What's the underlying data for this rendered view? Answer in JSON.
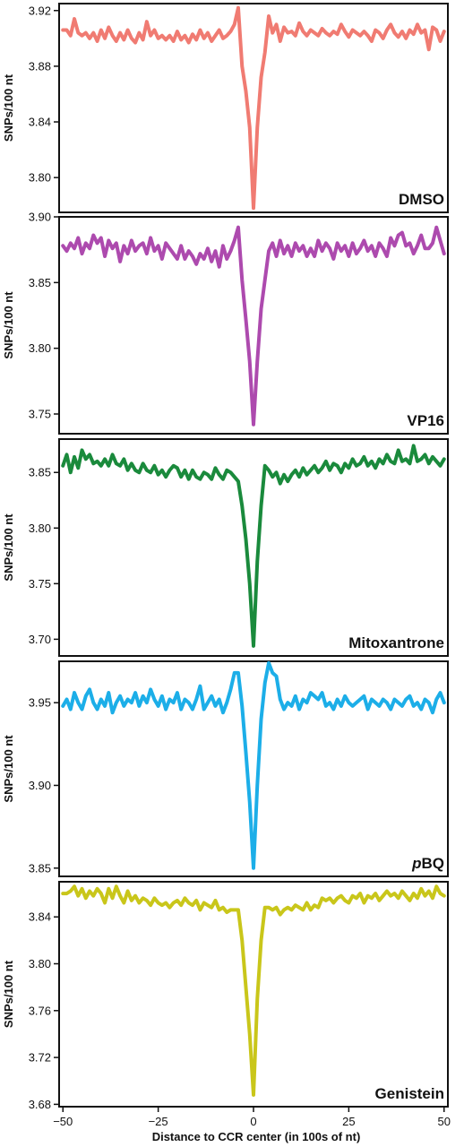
{
  "figure": {
    "ylabel": "SNPs/100 nt",
    "xlabel": "Distance to CCR center (in 100s of nt)"
  },
  "chart_data": [
    {
      "type": "line",
      "title": "DMSO",
      "color": "#F07B72",
      "ylim": [
        3.775,
        3.925
      ],
      "yticks": [
        3.8,
        3.84,
        3.88,
        3.92
      ],
      "xlim": [
        -51,
        51
      ],
      "x": [
        -50,
        -49,
        -48,
        -47,
        -46,
        -45,
        -44,
        -43,
        -42,
        -41,
        -40,
        -39,
        -38,
        -37,
        -36,
        -35,
        -34,
        -33,
        -32,
        -31,
        -30,
        -29,
        -28,
        -27,
        -26,
        -25,
        -24,
        -23,
        -22,
        -21,
        -20,
        -19,
        -18,
        -17,
        -16,
        -15,
        -14,
        -13,
        -12,
        -11,
        -10,
        -9,
        -8,
        -7,
        -6,
        -5,
        -4,
        -3,
        -2,
        -1,
        0,
        1,
        2,
        3,
        4,
        5,
        6,
        7,
        8,
        9,
        10,
        11,
        12,
        13,
        14,
        15,
        16,
        17,
        18,
        19,
        20,
        21,
        22,
        23,
        24,
        25,
        26,
        27,
        28,
        29,
        30,
        31,
        32,
        33,
        34,
        35,
        36,
        37,
        38,
        39,
        40,
        41,
        42,
        43,
        44,
        45,
        46,
        47,
        48,
        49,
        50
      ],
      "values": [
        3.906,
        3.906,
        3.902,
        3.914,
        3.904,
        3.902,
        3.904,
        3.9,
        3.904,
        3.898,
        3.906,
        3.9,
        3.908,
        3.902,
        3.898,
        3.904,
        3.899,
        3.906,
        3.9,
        3.897,
        3.904,
        3.899,
        3.912,
        3.902,
        3.906,
        3.9,
        3.902,
        3.899,
        3.902,
        3.898,
        3.905,
        3.899,
        3.902,
        3.897,
        3.903,
        3.899,
        3.906,
        3.9,
        3.904,
        3.898,
        3.902,
        3.906,
        3.9,
        3.902,
        3.905,
        3.91,
        3.922,
        3.88,
        3.862,
        3.836,
        3.778,
        3.836,
        3.872,
        3.89,
        3.916,
        3.904,
        3.91,
        3.898,
        3.908,
        3.904,
        3.905,
        3.902,
        3.911,
        3.905,
        3.902,
        3.906,
        3.904,
        3.902,
        3.907,
        3.904,
        3.902,
        3.905,
        3.903,
        3.91,
        3.905,
        3.901,
        3.906,
        3.904,
        3.902,
        3.905,
        3.902,
        3.898,
        3.906,
        3.904,
        3.9,
        3.906,
        3.91,
        3.904,
        3.901,
        3.905,
        3.9,
        3.906,
        3.903,
        3.91,
        3.904,
        3.906,
        3.892,
        3.908,
        3.906,
        3.898,
        3.905
      ]
    },
    {
      "type": "line",
      "title": "VP16",
      "color": "#AD4AAE",
      "ylim": [
        3.735,
        3.9
      ],
      "yticks": [
        3.75,
        3.8,
        3.85,
        3.9
      ],
      "xlim": [
        -51,
        51
      ],
      "x": [
        -50,
        -49,
        -48,
        -47,
        -46,
        -45,
        -44,
        -43,
        -42,
        -41,
        -40,
        -39,
        -38,
        -37,
        -36,
        -35,
        -34,
        -33,
        -32,
        -31,
        -30,
        -29,
        -28,
        -27,
        -26,
        -25,
        -24,
        -23,
        -22,
        -21,
        -20,
        -19,
        -18,
        -17,
        -16,
        -15,
        -14,
        -13,
        -12,
        -11,
        -10,
        -9,
        -8,
        -7,
        -6,
        -5,
        -4,
        -3,
        -2,
        -1,
        0,
        1,
        2,
        3,
        4,
        5,
        6,
        7,
        8,
        9,
        10,
        11,
        12,
        13,
        14,
        15,
        16,
        17,
        18,
        19,
        20,
        21,
        22,
        23,
        24,
        25,
        26,
        27,
        28,
        29,
        30,
        31,
        32,
        33,
        34,
        35,
        36,
        37,
        38,
        39,
        40,
        41,
        42,
        43,
        44,
        45,
        46,
        47,
        48,
        49,
        50
      ],
      "values": [
        3.878,
        3.874,
        3.88,
        3.876,
        3.884,
        3.872,
        3.88,
        3.876,
        3.886,
        3.88,
        3.884,
        3.87,
        3.882,
        3.876,
        3.88,
        3.866,
        3.878,
        3.872,
        3.882,
        3.874,
        3.878,
        3.88,
        3.872,
        3.884,
        3.874,
        3.878,
        3.868,
        3.88,
        3.876,
        3.872,
        3.868,
        3.878,
        3.868,
        3.874,
        3.87,
        3.864,
        3.872,
        3.868,
        3.876,
        3.866,
        3.874,
        3.862,
        3.878,
        3.868,
        3.874,
        3.882,
        3.892,
        3.852,
        3.822,
        3.79,
        3.742,
        3.79,
        3.83,
        3.852,
        3.874,
        3.88,
        3.87,
        3.882,
        3.872,
        3.878,
        3.87,
        3.88,
        3.874,
        3.878,
        3.87,
        3.876,
        3.87,
        3.882,
        3.874,
        3.88,
        3.876,
        3.868,
        3.88,
        3.874,
        3.878,
        3.87,
        3.88,
        3.872,
        3.876,
        3.882,
        3.874,
        3.878,
        3.87,
        3.88,
        3.876,
        3.87,
        3.884,
        3.878,
        3.886,
        3.888,
        3.878,
        3.88,
        3.872,
        3.878,
        3.886,
        3.876,
        3.876,
        3.88,
        3.892,
        3.882,
        3.872
      ]
    },
    {
      "type": "line",
      "title": "Mitoxantrone",
      "color": "#1A8A3C",
      "ylim": [
        3.685,
        3.88
      ],
      "yticks": [
        3.7,
        3.75,
        3.8,
        3.85
      ],
      "xlim": [
        -51,
        51
      ],
      "x": [
        -50,
        -49,
        -48,
        -47,
        -46,
        -45,
        -44,
        -43,
        -42,
        -41,
        -40,
        -39,
        -38,
        -37,
        -36,
        -35,
        -34,
        -33,
        -32,
        -31,
        -30,
        -29,
        -28,
        -27,
        -26,
        -25,
        -24,
        -23,
        -22,
        -21,
        -20,
        -19,
        -18,
        -17,
        -16,
        -15,
        -14,
        -13,
        -12,
        -11,
        -10,
        -9,
        -8,
        -7,
        -6,
        -5,
        -4,
        -3,
        -2,
        -1,
        0,
        1,
        2,
        3,
        4,
        5,
        6,
        7,
        8,
        9,
        10,
        11,
        12,
        13,
        14,
        15,
        16,
        17,
        18,
        19,
        20,
        21,
        22,
        23,
        24,
        25,
        26,
        27,
        28,
        29,
        30,
        31,
        32,
        33,
        34,
        35,
        36,
        37,
        38,
        39,
        40,
        41,
        42,
        43,
        44,
        45,
        46,
        47,
        48,
        49,
        50
      ],
      "values": [
        3.856,
        3.866,
        3.85,
        3.864,
        3.854,
        3.87,
        3.862,
        3.866,
        3.858,
        3.86,
        3.856,
        3.862,
        3.856,
        3.866,
        3.858,
        3.856,
        3.862,
        3.852,
        3.858,
        3.852,
        3.85,
        3.858,
        3.852,
        3.85,
        3.856,
        3.848,
        3.852,
        3.846,
        3.852,
        3.856,
        3.854,
        3.846,
        3.852,
        3.844,
        3.852,
        3.846,
        3.844,
        3.85,
        3.848,
        3.844,
        3.854,
        3.848,
        3.844,
        3.852,
        3.85,
        3.846,
        3.842,
        3.82,
        3.79,
        3.75,
        3.694,
        3.77,
        3.82,
        3.856,
        3.852,
        3.846,
        3.85,
        3.84,
        3.848,
        3.842,
        3.848,
        3.852,
        3.846,
        3.854,
        3.848,
        3.852,
        3.856,
        3.85,
        3.854,
        3.86,
        3.852,
        3.858,
        3.856,
        3.85,
        3.858,
        3.854,
        3.862,
        3.856,
        3.858,
        3.864,
        3.856,
        3.86,
        3.854,
        3.862,
        3.858,
        3.866,
        3.86,
        3.858,
        3.87,
        3.86,
        3.862,
        3.858,
        3.874,
        3.86,
        3.862,
        3.866,
        3.858,
        3.864,
        3.86,
        3.856,
        3.862
      ]
    },
    {
      "type": "line",
      "title": "pBQ",
      "color": "#1CAEE8",
      "ylim": [
        3.845,
        3.975
      ],
      "yticks": [
        3.85,
        3.9,
        3.95
      ],
      "xlim": [
        -51,
        51
      ],
      "x": [
        -50,
        -49,
        -48,
        -47,
        -46,
        -45,
        -44,
        -43,
        -42,
        -41,
        -40,
        -39,
        -38,
        -37,
        -36,
        -35,
        -34,
        -33,
        -32,
        -31,
        -30,
        -29,
        -28,
        -27,
        -26,
        -25,
        -24,
        -23,
        -22,
        -21,
        -20,
        -19,
        -18,
        -17,
        -16,
        -15,
        -14,
        -13,
        -12,
        -11,
        -10,
        -9,
        -8,
        -7,
        -6,
        -5,
        -4,
        -3,
        -2,
        -1,
        0,
        1,
        2,
        3,
        4,
        5,
        6,
        7,
        8,
        9,
        10,
        11,
        12,
        13,
        14,
        15,
        16,
        17,
        18,
        19,
        20,
        21,
        22,
        23,
        24,
        25,
        26,
        27,
        28,
        29,
        30,
        31,
        32,
        33,
        34,
        35,
        36,
        37,
        38,
        39,
        40,
        41,
        42,
        43,
        44,
        45,
        46,
        47,
        48,
        49,
        50
      ],
      "values": [
        3.948,
        3.952,
        3.946,
        3.956,
        3.95,
        3.946,
        3.954,
        3.958,
        3.95,
        3.946,
        3.952,
        3.948,
        3.956,
        3.944,
        3.95,
        3.954,
        3.948,
        3.952,
        3.95,
        3.956,
        3.948,
        3.954,
        3.95,
        3.958,
        3.952,
        3.948,
        3.954,
        3.946,
        3.952,
        3.95,
        3.956,
        3.946,
        3.952,
        3.95,
        3.946,
        3.952,
        3.96,
        3.946,
        3.95,
        3.954,
        3.948,
        3.952,
        3.944,
        3.95,
        3.958,
        3.968,
        3.968,
        3.948,
        3.92,
        3.89,
        3.85,
        3.9,
        3.94,
        3.962,
        3.974,
        3.968,
        3.966,
        3.952,
        3.946,
        3.95,
        3.948,
        3.954,
        3.946,
        3.952,
        3.95,
        3.956,
        3.954,
        3.952,
        3.956,
        3.948,
        3.95,
        3.946,
        3.952,
        3.948,
        3.954,
        3.95,
        3.948,
        3.95,
        3.952,
        3.954,
        3.946,
        3.952,
        3.95,
        3.948,
        3.952,
        3.95,
        3.946,
        3.952,
        3.95,
        3.948,
        3.952,
        3.954,
        3.948,
        3.95,
        3.946,
        3.952,
        3.95,
        3.944,
        3.952,
        3.956,
        3.95
      ]
    },
    {
      "type": "line",
      "title": "Genistein",
      "color": "#C9C61A",
      "ylim": [
        3.678,
        3.87
      ],
      "yticks": [
        3.68,
        3.72,
        3.76,
        3.8,
        3.84
      ],
      "xticks": [
        -50,
        -25,
        0,
        25,
        50
      ],
      "xlim": [
        -51,
        51
      ],
      "x": [
        -50,
        -49,
        -48,
        -47,
        -46,
        -45,
        -44,
        -43,
        -42,
        -41,
        -40,
        -39,
        -38,
        -37,
        -36,
        -35,
        -34,
        -33,
        -32,
        -31,
        -30,
        -29,
        -28,
        -27,
        -26,
        -25,
        -24,
        -23,
        -22,
        -21,
        -20,
        -19,
        -18,
        -17,
        -16,
        -15,
        -14,
        -13,
        -12,
        -11,
        -10,
        -9,
        -8,
        -7,
        -6,
        -5,
        -4,
        -3,
        -2,
        -1,
        0,
        1,
        2,
        3,
        4,
        5,
        6,
        7,
        8,
        9,
        10,
        11,
        12,
        13,
        14,
        15,
        16,
        17,
        18,
        19,
        20,
        21,
        22,
        23,
        24,
        25,
        26,
        27,
        28,
        29,
        30,
        31,
        32,
        33,
        34,
        35,
        36,
        37,
        38,
        39,
        40,
        41,
        42,
        43,
        44,
        45,
        46,
        47,
        48,
        49,
        50
      ],
      "values": [
        3.86,
        3.86,
        3.862,
        3.866,
        3.858,
        3.864,
        3.856,
        3.862,
        3.858,
        3.864,
        3.86,
        3.852,
        3.864,
        3.856,
        3.866,
        3.858,
        3.852,
        3.862,
        3.854,
        3.858,
        3.852,
        3.856,
        3.854,
        3.85,
        3.856,
        3.852,
        3.85,
        3.852,
        3.848,
        3.852,
        3.854,
        3.85,
        3.856,
        3.852,
        3.85,
        3.854,
        3.846,
        3.852,
        3.85,
        3.848,
        3.854,
        3.846,
        3.848,
        3.844,
        3.846,
        3.846,
        3.846,
        3.82,
        3.78,
        3.74,
        3.688,
        3.77,
        3.82,
        3.848,
        3.848,
        3.846,
        3.848,
        3.842,
        3.846,
        3.848,
        3.846,
        3.85,
        3.848,
        3.846,
        3.852,
        3.846,
        3.85,
        3.848,
        3.856,
        3.854,
        3.856,
        3.852,
        3.856,
        3.858,
        3.854,
        3.852,
        3.858,
        3.856,
        3.86,
        3.852,
        3.858,
        3.856,
        3.86,
        3.854,
        3.858,
        3.862,
        3.858,
        3.86,
        3.856,
        3.862,
        3.858,
        3.854,
        3.86,
        3.856,
        3.864,
        3.858,
        3.862,
        3.856,
        3.866,
        3.86,
        3.858
      ]
    }
  ]
}
